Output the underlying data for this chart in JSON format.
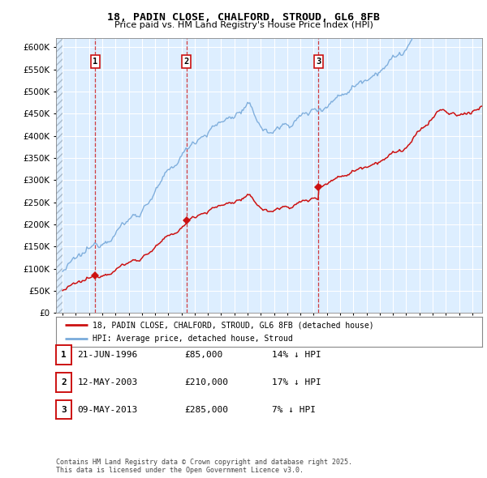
{
  "title_line1": "18, PADIN CLOSE, CHALFORD, STROUD, GL6 8FB",
  "title_line2": "Price paid vs. HM Land Registry's House Price Index (HPI)",
  "ylim": [
    0,
    620000
  ],
  "yticks": [
    0,
    50000,
    100000,
    150000,
    200000,
    250000,
    300000,
    350000,
    400000,
    450000,
    500000,
    550000,
    600000
  ],
  "xlim_start": 1993.5,
  "xlim_end": 2025.75,
  "hpi_color": "#7aabdb",
  "price_color": "#cc1111",
  "background_color": "#ddeeff",
  "grid_color": "#ffffff",
  "sale_dates": [
    1996.47,
    2003.36,
    2013.36
  ],
  "sale_prices": [
    85000,
    210000,
    285000
  ],
  "sale_labels": [
    "1",
    "2",
    "3"
  ],
  "legend_line1": "18, PADIN CLOSE, CHALFORD, STROUD, GL6 8FB (detached house)",
  "legend_line2": "HPI: Average price, detached house, Stroud",
  "table_rows": [
    [
      "1",
      "21-JUN-1996",
      "£85,000",
      "14% ↓ HPI"
    ],
    [
      "2",
      "12-MAY-2003",
      "£210,000",
      "17% ↓ HPI"
    ],
    [
      "3",
      "09-MAY-2013",
      "£285,000",
      "7% ↓ HPI"
    ]
  ],
  "footnote": "Contains HM Land Registry data © Crown copyright and database right 2025.\nThis data is licensed under the Open Government Licence v3.0."
}
